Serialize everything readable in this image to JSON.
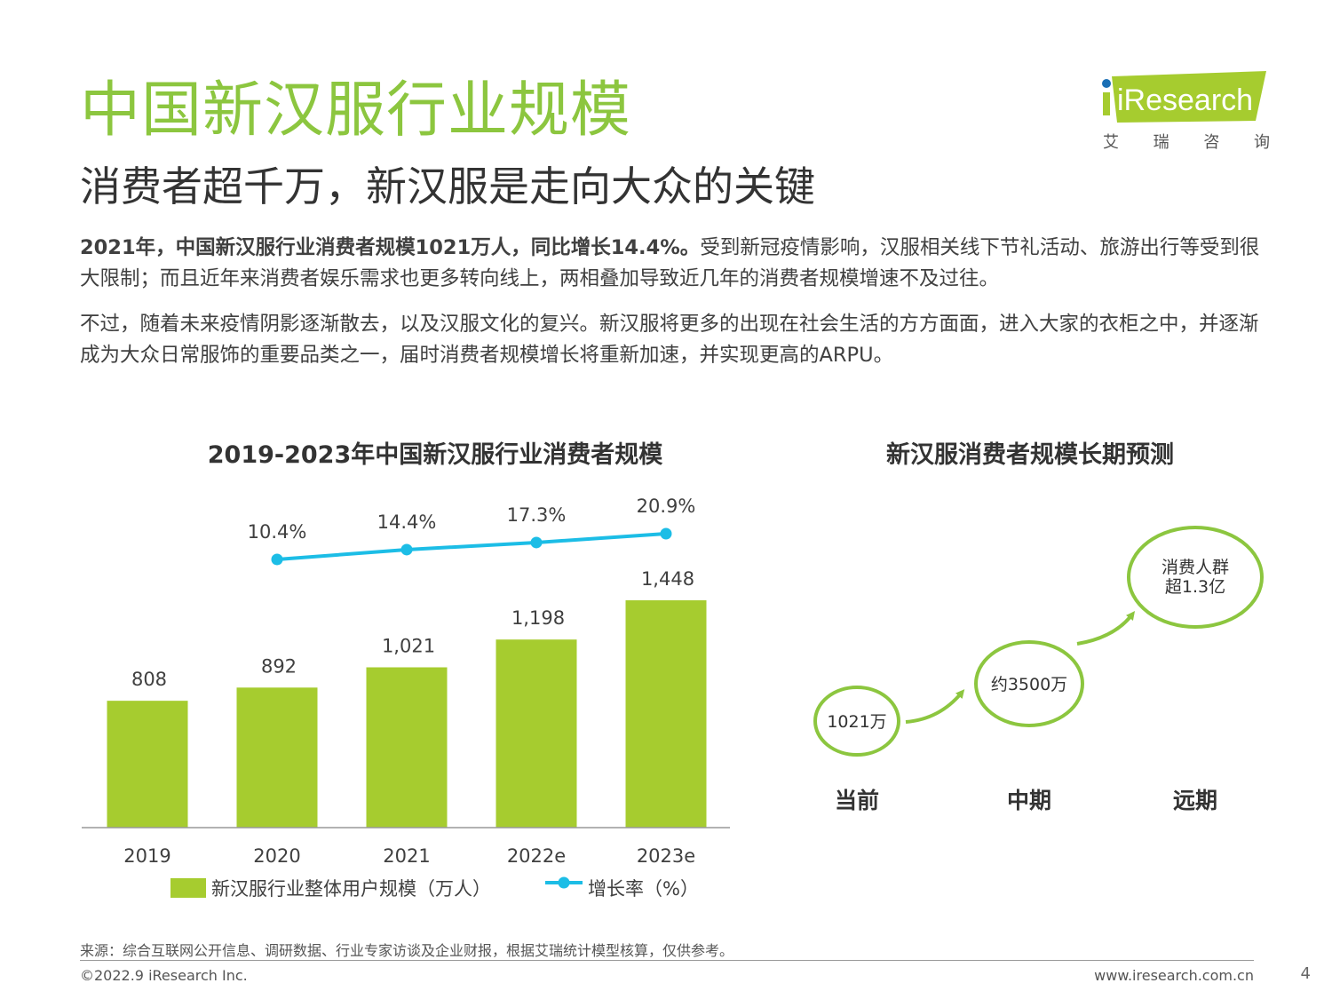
{
  "header": {
    "title": "中国新汉服行业规模",
    "subtitle": "消费者超千万，新汉服是走向大众的关键",
    "logo_text": "iResearch",
    "logo_cn": [
      "艾",
      "瑞",
      "咨",
      "询"
    ]
  },
  "body": {
    "p1_bold": "2021年，中国新汉服行业消费者规模1021万人，同比增长14.4%。",
    "p1_rest": "受到新冠疫情影响，汉服相关线下节礼活动、旅游出行等受到很大限制；而且近年来消费者娱乐需求也更多转向线上，两相叠加导致近几年的消费者规模增速不及过往。",
    "p2": "不过，随着未来疫情阴影逐渐散去，以及汉服文化的复兴。新汉服将更多的出现在社会生活的方方面面，进入大家的衣柜之中，并逐渐成为大众日常服饰的重要品类之一，届时消费者规模增长将重新加速，并实现更高的ARPU。"
  },
  "chart_data": [
    {
      "type": "bar",
      "title": "2019-2023年中国新汉服行业消费者规模",
      "categories": [
        "2019",
        "2020",
        "2021",
        "2022e",
        "2023e"
      ],
      "series": [
        {
          "name": "新汉服行业整体用户规模（万人）",
          "type": "bar",
          "values": [
            808,
            892,
            1021,
            1198,
            1448
          ],
          "labels": [
            "808",
            "892",
            "1,021",
            "1,198",
            "1,448"
          ],
          "color": "#a6cc2f"
        },
        {
          "name": "增长率（%）",
          "type": "line",
          "x": [
            "2020",
            "2021",
            "2022e",
            "2023e"
          ],
          "values": [
            10.4,
            14.4,
            17.3,
            20.9
          ],
          "labels": [
            "10.4%",
            "14.4%",
            "17.3%",
            "20.9%"
          ],
          "color": "#1cbde6"
        }
      ],
      "legend_position": "bottom",
      "grid": false
    },
    {
      "type": "diagram",
      "title": "新汉服消费者规模长期预测",
      "stages": [
        {
          "label": "当前",
          "value": "1021万"
        },
        {
          "label": "中期",
          "value": "约3500万"
        },
        {
          "label": "远期",
          "value_lines": [
            "消费人群",
            "超1.3亿"
          ]
        }
      ],
      "colors": {
        "circle_outer": "#8cc63f",
        "circle_inner": "#6ab04c"
      }
    }
  ],
  "footer": {
    "source": "来源：综合互联网公开信息、调研数据、行业专家访谈及企业财报，根据艾瑞统计模型核算，仅供参考。",
    "copyright": "©2022.9 iResearch Inc.",
    "website": "www.iresearch.com.cn",
    "page_number": "4"
  },
  "colors": {
    "title_green": "#8cc63f",
    "logo_green": "#a6cc2f"
  }
}
